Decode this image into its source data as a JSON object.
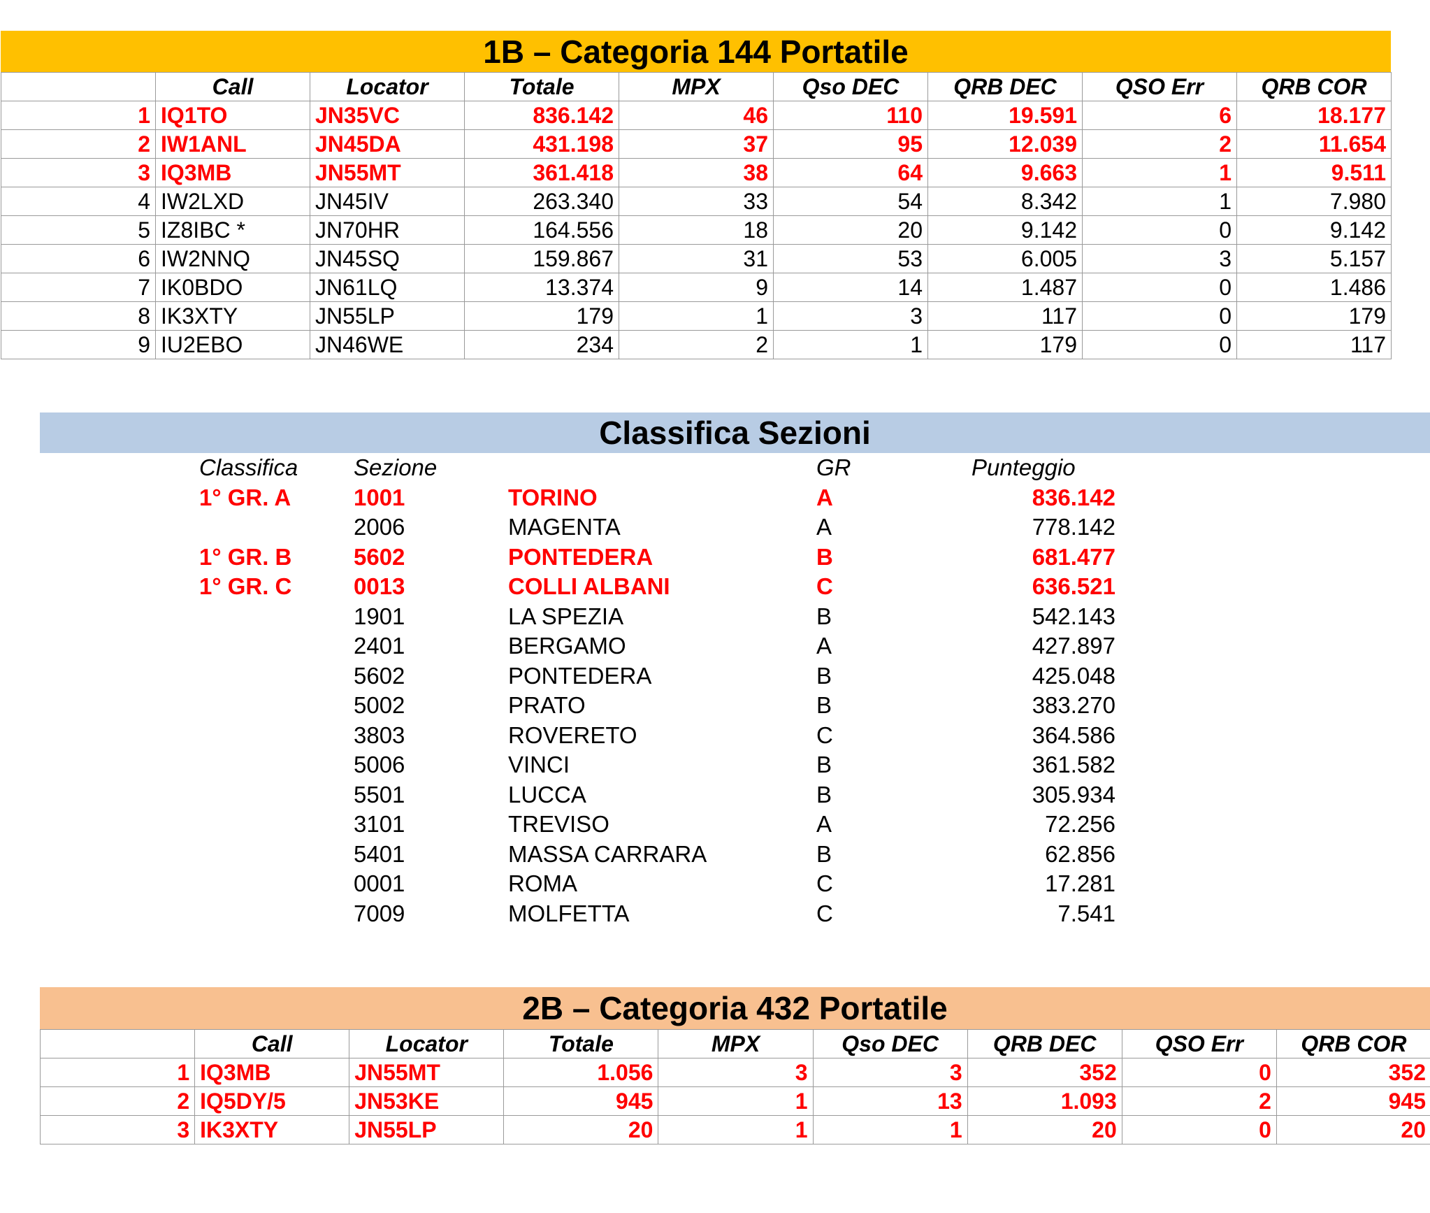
{
  "cat144": {
    "title": "1B – Categoria 144 Portatile",
    "headers": [
      "",
      "Call",
      "Locator",
      "Totale",
      "MPX",
      "Qso DEC",
      "QRB DEC",
      "QSO  Err",
      "QRB COR"
    ],
    "rows": [
      [
        "1",
        "IQ1TO",
        "JN35VC",
        "836.142",
        "46",
        "110",
        "19.591",
        "6",
        "18.177"
      ],
      [
        "2",
        "IW1ANL",
        "JN45DA",
        "431.198",
        "37",
        "95",
        "12.039",
        "2",
        "11.654"
      ],
      [
        "3",
        "IQ3MB",
        "JN55MT",
        "361.418",
        "38",
        "64",
        "9.663",
        "1",
        "9.511"
      ],
      [
        "4",
        "IW2LXD",
        "JN45IV",
        "263.340",
        "33",
        "54",
        "8.342",
        "1",
        "7.980"
      ],
      [
        "5",
        "IZ8IBC *",
        "JN70HR",
        "164.556",
        "18",
        "20",
        "9.142",
        "0",
        "9.142"
      ],
      [
        "6",
        "IW2NNQ",
        "JN45SQ",
        "159.867",
        "31",
        "53",
        "6.005",
        "3",
        "5.157"
      ],
      [
        "7",
        "IK0BDO",
        "JN61LQ",
        "13.374",
        "9",
        "14",
        "1.487",
        "0",
        "1.486"
      ],
      [
        "8",
        "IK3XTY",
        "JN55LP",
        "179",
        "1",
        "3",
        "117",
        "0",
        "179"
      ],
      [
        "9",
        "IU2EBO",
        "JN46WE",
        "234",
        "2",
        "1",
        "179",
        "0",
        "117"
      ]
    ]
  },
  "sezioni": {
    "title": "Classifica Sezioni",
    "headers": {
      "classifica": "Classifica",
      "sezione": "Sezione",
      "gr": "GR",
      "punteggio": "Punteggio"
    },
    "rows": [
      {
        "classifica": "1° GR. A",
        "code": "1001",
        "name": "TORINO",
        "gr": "A",
        "score": "836.142",
        "winner": true
      },
      {
        "classifica": "",
        "code": "2006",
        "name": "MAGENTA",
        "gr": "A",
        "score": "778.142",
        "winner": false
      },
      {
        "classifica": "1° GR. B",
        "code": "5602",
        "name": "PONTEDERA",
        "gr": "B",
        "score": "681.477",
        "winner": true
      },
      {
        "classifica": "1° GR. C",
        "code": "0013",
        "name": "COLLI ALBANI",
        "gr": "C",
        "score": "636.521",
        "winner": true
      },
      {
        "classifica": "",
        "code": "1901",
        "name": "LA SPEZIA",
        "gr": "B",
        "score": "542.143",
        "winner": false
      },
      {
        "classifica": "",
        "code": "2401",
        "name": "BERGAMO",
        "gr": "A",
        "score": "427.897",
        "winner": false
      },
      {
        "classifica": "",
        "code": "5602",
        "name": "PONTEDERA",
        "gr": "B",
        "score": "425.048",
        "winner": false
      },
      {
        "classifica": "",
        "code": "5002",
        "name": "PRATO",
        "gr": "B",
        "score": "383.270",
        "winner": false
      },
      {
        "classifica": "",
        "code": "3803",
        "name": "ROVERETO",
        "gr": "C",
        "score": "364.586",
        "winner": false
      },
      {
        "classifica": "",
        "code": "5006",
        "name": "VINCI",
        "gr": "B",
        "score": "361.582",
        "winner": false
      },
      {
        "classifica": "",
        "code": "5501",
        "name": "LUCCA",
        "gr": "B",
        "score": "305.934",
        "winner": false
      },
      {
        "classifica": "",
        "code": "3101",
        "name": "TREVISO",
        "gr": "A",
        "score": "72.256",
        "winner": false
      },
      {
        "classifica": "",
        "code": "5401",
        "name": "MASSA CARRARA",
        "gr": "B",
        "score": "62.856",
        "winner": false
      },
      {
        "classifica": "",
        "code": "0001",
        "name": "ROMA",
        "gr": "C",
        "score": "17.281",
        "winner": false
      },
      {
        "classifica": "",
        "code": "7009",
        "name": "MOLFETTA",
        "gr": "C",
        "score": "7.541",
        "winner": false
      }
    ]
  },
  "cat432": {
    "title": "2B – Categoria 432 Portatile",
    "headers": [
      "",
      "Call",
      "Locator",
      "Totale",
      "MPX",
      "Qso DEC",
      "QRB DEC",
      "QSO  Err",
      "QRB COR"
    ],
    "rows": [
      [
        "1",
        "IQ3MB",
        "JN55MT",
        "1.056",
        "3",
        "3",
        "352",
        "0",
        "352"
      ],
      [
        "2",
        "IQ5DY/5",
        "JN53KE",
        "945",
        "1",
        "13",
        "1.093",
        "2",
        "945"
      ],
      [
        "3",
        "IK3XTY",
        "JN55LP",
        "20",
        "1",
        "1",
        "20",
        "0",
        "20"
      ]
    ]
  },
  "colors": {
    "band_144": "#ffc000",
    "band_sezioni": "#b8cce4",
    "band_432": "#f8c090",
    "highlight": "#ff0000"
  }
}
